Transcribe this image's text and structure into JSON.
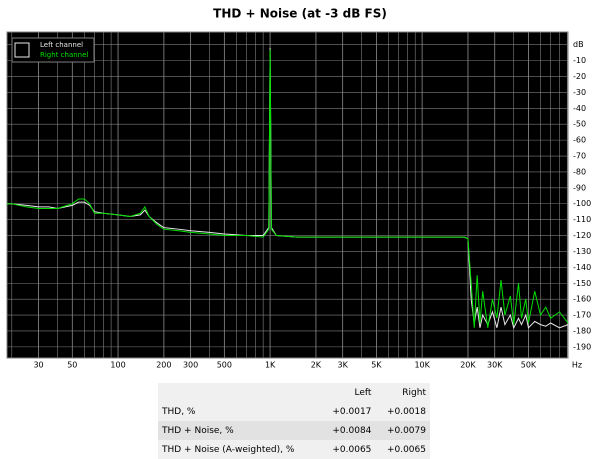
{
  "chart_data": {
    "type": "line",
    "title": "THD + Noise (at -3 dB FS)",
    "xlabel": "Hz",
    "xscale": "log",
    "grid": true,
    "minor_grid": true,
    "legend": "top-left",
    "background": "#000000",
    "grid_color": "#808080",
    "xlim": [
      18.6,
      91000
    ],
    "ylim": [
      -197,
      8
    ],
    "xticks": [
      30,
      50,
      100,
      200,
      300,
      500,
      {
        "value": 1000,
        "label": "1K"
      },
      {
        "value": 2000,
        "label": "2K"
      },
      {
        "value": 3000,
        "label": "3K"
      },
      {
        "value": 5000,
        "label": "5K"
      },
      {
        "value": 10000,
        "label": "10K"
      },
      {
        "value": 20000,
        "label": "20K"
      },
      {
        "value": 30000,
        "label": "30K"
      },
      {
        "value": 50000,
        "label": "50K"
      }
    ],
    "yticks": [
      {
        "value": 0,
        "label": "dB"
      },
      -10,
      -20,
      -30,
      -40,
      -50,
      -60,
      -70,
      -80,
      -90,
      -100,
      -110,
      -120,
      -130,
      -140,
      -150,
      -160,
      -170,
      -180,
      -190
    ],
    "x": [
      18.6,
      20,
      25,
      30,
      35,
      40,
      50,
      55,
      60,
      65,
      70,
      80,
      100,
      120,
      140,
      150,
      160,
      180,
      200,
      250,
      300,
      400,
      500,
      700,
      900,
      980,
      1000,
      1020,
      1100,
      1500,
      2000,
      3000,
      4000,
      5000,
      7000,
      10000,
      15000,
      19000,
      20000,
      21000,
      22000,
      23000,
      24000,
      25000,
      27000,
      29000,
      31000,
      33000,
      35000,
      38000,
      40000,
      43000,
      45000,
      48000,
      50000,
      55000,
      60000,
      65000,
      70000,
      80000,
      91000
    ],
    "series": [
      {
        "name": "Left channel",
        "color": "#e8e8e8",
        "values": [
          -100,
          -100,
          -101,
          -102,
          -102,
          -103,
          -101,
          -99,
          -99,
          -101,
          -105,
          -106,
          -107,
          -108,
          -107,
          -104,
          -108,
          -112,
          -115,
          -116,
          -117,
          -118,
          -119,
          -120,
          -120,
          -115,
          -2,
          -115,
          -120,
          -121,
          -121,
          -121,
          -121,
          -121,
          -121,
          -121,
          -121,
          -121,
          -122,
          -160,
          -175,
          -165,
          -178,
          -170,
          -176,
          -168,
          -178,
          -165,
          -176,
          -170,
          -178,
          -172,
          -176,
          -170,
          -178,
          -174,
          -176,
          -177,
          -175,
          -178,
          -176
        ]
      },
      {
        "name": "Right channel",
        "color": "#00e000",
        "values": [
          -100,
          -100,
          -102,
          -103,
          -103,
          -103,
          -100,
          -97,
          -97,
          -100,
          -106,
          -106,
          -107,
          -108,
          -106,
          -102,
          -108,
          -113,
          -116,
          -117,
          -118,
          -119,
          -120,
          -120,
          -121,
          -116,
          -3,
          -116,
          -120,
          -121,
          -121,
          -121,
          -121,
          -121,
          -121,
          -121,
          -121,
          -121,
          -122,
          -150,
          -178,
          -145,
          -175,
          -155,
          -178,
          -160,
          -172,
          -148,
          -170,
          -158,
          -176,
          -150,
          -172,
          -160,
          -175,
          -155,
          -170,
          -165,
          -172,
          -168,
          -175
        ]
      }
    ]
  },
  "table": {
    "columns": [
      "Left",
      "Right"
    ],
    "rows": [
      [
        "THD, %",
        "+0.0017",
        "+0.0018"
      ],
      [
        "THD + Noise, %",
        "+0.0084",
        "+0.0079"
      ],
      [
        "THD + Noise (A-weighted), %",
        "+0.0065",
        "+0.0065"
      ]
    ]
  }
}
